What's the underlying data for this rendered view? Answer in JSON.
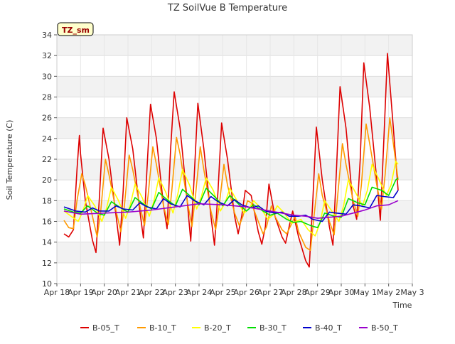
{
  "chart_data": {
    "type": "line",
    "title": "TZ SoilVue B Temperature",
    "xlabel": "Time",
    "ylabel": "Soil Temperature (C)",
    "station_label": "TZ_sm",
    "ylim": [
      10,
      34
    ],
    "yticks": [
      10,
      12,
      14,
      16,
      18,
      20,
      22,
      24,
      26,
      28,
      30,
      32,
      34
    ],
    "xlim": [
      0,
      15
    ],
    "xticks": [
      0,
      1,
      2,
      3,
      4,
      5,
      6,
      7,
      8,
      9,
      10,
      11,
      12,
      13,
      14,
      15
    ],
    "xtick_labels": [
      "Apr 18",
      "Apr 19",
      "Apr 20",
      "Apr 21",
      "Apr 22",
      "Apr 23",
      "Apr 24",
      "Apr 25",
      "Apr 26",
      "Apr 27",
      "Apr 28",
      "Apr 29",
      "Apr 30",
      "May 1",
      "May 2",
      "May 3"
    ],
    "grid": true,
    "legend_position": "bottom",
    "series": [
      {
        "name": "B-05_T",
        "color": "#dd0000",
        "x": [
          0.3,
          0.5,
          0.7,
          0.85,
          0.95,
          1.0,
          1.2,
          1.5,
          1.65,
          1.8,
          1.95,
          2.2,
          2.5,
          2.65,
          2.8,
          2.95,
          3.2,
          3.5,
          3.65,
          3.8,
          3.95,
          4.2,
          4.5,
          4.65,
          4.8,
          4.95,
          5.2,
          5.5,
          5.65,
          5.8,
          5.95,
          6.2,
          6.5,
          6.65,
          6.8,
          6.95,
          7.2,
          7.5,
          7.65,
          7.8,
          7.95,
          8.2,
          8.5,
          8.65,
          8.8,
          8.95,
          9.2,
          9.5,
          9.65,
          9.8,
          9.95,
          10.2,
          10.5,
          10.65,
          10.8,
          10.95,
          11.2,
          11.5,
          11.65,
          11.8,
          11.95,
          12.2,
          12.5,
          12.65,
          12.8,
          12.95,
          13.2,
          13.5,
          13.65,
          13.8,
          13.95,
          14.2,
          14.4
        ],
        "y": [
          14.8,
          14.5,
          15.2,
          21.0,
          24.3,
          22.5,
          18.0,
          14.2,
          13.0,
          18.5,
          25.0,
          22.0,
          16.5,
          13.7,
          19.0,
          26.0,
          23.0,
          17.0,
          14.4,
          21.0,
          27.3,
          24.0,
          17.5,
          15.3,
          23.0,
          28.5,
          25.0,
          18.0,
          14.1,
          20.5,
          27.4,
          23.0,
          16.5,
          13.7,
          19.0,
          25.5,
          22.0,
          16.5,
          14.8,
          16.5,
          19.0,
          18.5,
          15.0,
          13.8,
          15.5,
          19.6,
          16.5,
          14.5,
          13.9,
          15.5,
          17.0,
          14.5,
          12.2,
          11.6,
          18.0,
          25.1,
          20.0,
          15.5,
          13.7,
          21.0,
          29.0,
          25.0,
          17.5,
          16.2,
          22.0,
          31.3,
          27.0,
          20.0,
          16.1,
          24.0,
          32.2,
          25.0,
          19.0
        ]
      },
      {
        "name": "B-10_T",
        "color": "#ff9900",
        "x": [
          0.3,
          0.5,
          0.7,
          0.85,
          1.05,
          1.2,
          1.5,
          1.7,
          1.85,
          2.05,
          2.2,
          2.5,
          2.7,
          2.85,
          3.05,
          3.2,
          3.5,
          3.7,
          3.85,
          4.05,
          4.2,
          4.5,
          4.7,
          4.85,
          5.05,
          5.2,
          5.5,
          5.7,
          5.85,
          6.05,
          6.2,
          6.5,
          6.7,
          6.85,
          7.05,
          7.2,
          7.5,
          7.7,
          7.85,
          8.05,
          8.2,
          8.5,
          8.7,
          8.85,
          9.05,
          9.2,
          9.5,
          9.7,
          9.85,
          10.05,
          10.2,
          10.5,
          10.7,
          10.85,
          11.05,
          11.2,
          11.5,
          11.7,
          11.85,
          12.05,
          12.2,
          12.5,
          12.7,
          12.85,
          13.05,
          13.2,
          13.5,
          13.7,
          13.85,
          14.05,
          14.2,
          14.4
        ],
        "y": [
          16.1,
          15.4,
          15.3,
          18.0,
          20.6,
          19.5,
          16.5,
          14.5,
          17.0,
          22.0,
          20.5,
          17.0,
          15.0,
          17.5,
          22.4,
          21.0,
          17.5,
          15.6,
          18.5,
          23.2,
          21.5,
          17.5,
          15.7,
          19.0,
          24.1,
          22.5,
          18.0,
          15.5,
          18.5,
          23.2,
          21.0,
          17.0,
          15.2,
          17.5,
          21.5,
          19.5,
          16.8,
          15.6,
          16.5,
          18.0,
          17.8,
          16.0,
          14.8,
          15.5,
          17.5,
          16.5,
          15.2,
          14.8,
          15.5,
          16.5,
          15.0,
          13.5,
          13.2,
          16.5,
          20.6,
          18.5,
          16.0,
          14.7,
          18.5,
          23.5,
          21.5,
          18.0,
          16.5,
          19.5,
          25.4,
          23.5,
          19.5,
          17.2,
          20.5,
          26.0,
          23.5,
          20.0
        ]
      },
      {
        "name": "B-20_T",
        "color": "#ffff00",
        "x": [
          0.3,
          0.6,
          0.9,
          1.1,
          1.3,
          1.6,
          1.9,
          2.1,
          2.3,
          2.6,
          2.9,
          3.1,
          3.3,
          3.6,
          3.9,
          4.1,
          4.3,
          4.6,
          4.9,
          5.1,
          5.3,
          5.6,
          5.9,
          6.1,
          6.3,
          6.6,
          6.9,
          7.1,
          7.3,
          7.6,
          7.9,
          8.1,
          8.3,
          8.6,
          8.9,
          9.1,
          9.3,
          9.6,
          9.9,
          10.1,
          10.3,
          10.6,
          10.9,
          11.1,
          11.3,
          11.6,
          11.9,
          12.1,
          12.3,
          12.6,
          12.9,
          13.1,
          13.3,
          13.6,
          13.9,
          14.1,
          14.3,
          14.4
        ],
        "y": [
          17.0,
          16.5,
          16.0,
          17.0,
          18.5,
          17.5,
          16.0,
          17.3,
          19.3,
          18.0,
          16.3,
          17.6,
          19.6,
          18.3,
          16.5,
          18.0,
          20.2,
          18.8,
          16.8,
          18.6,
          21.0,
          19.5,
          17.2,
          18.4,
          20.2,
          19.0,
          17.0,
          17.8,
          19.2,
          18.0,
          16.8,
          17.2,
          18.0,
          17.3,
          16.2,
          16.6,
          17.5,
          16.8,
          15.8,
          16.0,
          16.2,
          15.2,
          14.6,
          15.8,
          18.0,
          17.0,
          16.0,
          17.5,
          20.0,
          18.8,
          17.5,
          19.0,
          21.5,
          20.0,
          18.5,
          19.5,
          21.8,
          21.5
        ]
      },
      {
        "name": "B-30_T",
        "color": "#00dd00",
        "x": [
          0.3,
          0.7,
          1.0,
          1.3,
          1.7,
          2.0,
          2.3,
          2.7,
          3.0,
          3.3,
          3.7,
          4.0,
          4.3,
          4.7,
          5.0,
          5.3,
          5.7,
          6.0,
          6.3,
          6.7,
          7.0,
          7.3,
          7.7,
          8.0,
          8.3,
          8.7,
          9.0,
          9.3,
          9.7,
          10.0,
          10.3,
          10.7,
          11.0,
          11.3,
          11.7,
          12.0,
          12.3,
          12.7,
          13.0,
          13.3,
          13.7,
          14.0,
          14.3,
          14.4
        ],
        "y": [
          17.2,
          16.9,
          16.8,
          17.5,
          16.8,
          16.6,
          17.9,
          17.3,
          16.9,
          18.3,
          17.6,
          17.2,
          18.8,
          18.0,
          17.5,
          19.1,
          18.3,
          17.6,
          19.2,
          18.3,
          17.5,
          18.5,
          17.6,
          17.0,
          17.6,
          17.0,
          16.6,
          16.8,
          16.2,
          15.9,
          16.0,
          15.6,
          15.4,
          16.8,
          16.5,
          16.4,
          18.2,
          17.8,
          17.6,
          19.3,
          19.0,
          18.5,
          20.0,
          20.2
        ]
      },
      {
        "name": "B-40_T",
        "color": "#0000cc",
        "x": [
          0.3,
          0.8,
          1.2,
          1.5,
          1.8,
          2.2,
          2.5,
          2.8,
          3.2,
          3.5,
          3.8,
          4.2,
          4.5,
          4.8,
          5.2,
          5.5,
          5.8,
          6.2,
          6.5,
          6.8,
          7.2,
          7.5,
          7.8,
          8.2,
          8.5,
          8.8,
          9.2,
          9.5,
          9.8,
          10.2,
          10.5,
          10.8,
          11.2,
          11.5,
          11.8,
          12.2,
          12.5,
          12.8,
          13.2,
          13.5,
          13.8,
          14.2,
          14.4
        ],
        "y": [
          17.4,
          17.0,
          16.9,
          17.3,
          17.0,
          17.0,
          17.5,
          17.2,
          17.1,
          17.8,
          17.4,
          17.2,
          18.2,
          17.7,
          17.4,
          18.5,
          18.0,
          17.6,
          18.4,
          17.9,
          17.5,
          18.1,
          17.6,
          17.3,
          17.5,
          17.0,
          16.8,
          16.9,
          16.5,
          16.5,
          16.6,
          16.2,
          16.0,
          16.9,
          16.8,
          16.7,
          17.6,
          17.5,
          17.3,
          18.5,
          18.4,
          18.3,
          19.0
        ]
      },
      {
        "name": "B-50_T",
        "color": "#9900cc",
        "x": [
          0.3,
          1.0,
          2.0,
          3.0,
          4.0,
          5.0,
          6.0,
          7.0,
          8.0,
          9.0,
          10.0,
          10.5,
          11.0,
          11.5,
          12.0,
          12.5,
          13.0,
          13.5,
          14.0,
          14.4
        ],
        "y": [
          17.0,
          16.7,
          16.8,
          16.9,
          17.1,
          17.4,
          17.7,
          17.6,
          17.4,
          17.0,
          16.6,
          16.5,
          16.3,
          16.4,
          16.5,
          16.8,
          17.1,
          17.5,
          17.6,
          18.0
        ]
      }
    ]
  }
}
